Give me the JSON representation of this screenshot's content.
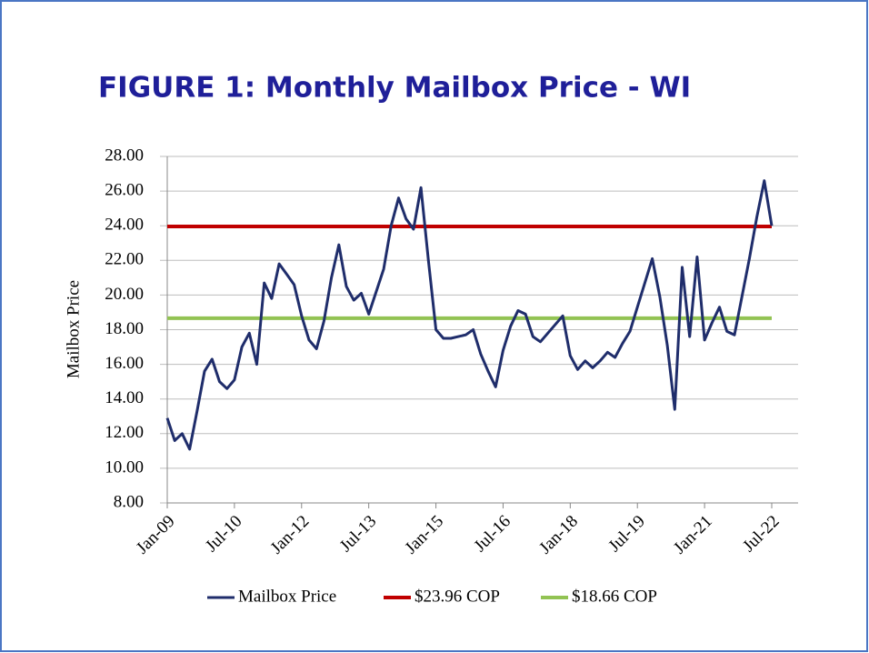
{
  "chart_data": {
    "type": "line",
    "title": "FIGURE 1: Monthly Mailbox Price - WI",
    "y_label": "Mailbox Price",
    "categories": [
      "Jan-09",
      null,
      null,
      null,
      null,
      null,
      null,
      null,
      null,
      "Jul-10",
      null,
      null,
      null,
      null,
      null,
      null,
      null,
      null,
      "Jan-12",
      null,
      null,
      null,
      null,
      null,
      null,
      null,
      null,
      "Jul-13",
      null,
      null,
      null,
      null,
      null,
      null,
      null,
      null,
      "Jan-15",
      null,
      null,
      null,
      null,
      null,
      null,
      null,
      null,
      "Jul-16",
      null,
      null,
      null,
      null,
      null,
      null,
      null,
      null,
      "Jan-18",
      null,
      null,
      null,
      null,
      null,
      null,
      null,
      null,
      "Jul-19",
      null,
      null,
      null,
      null,
      null,
      null,
      null,
      null,
      "Jan-21",
      null,
      null,
      null,
      null,
      null,
      null,
      null,
      null,
      "Jul-22"
    ],
    "series": [
      {
        "name": "Mailbox Price",
        "color": "#1f2d6b",
        "values": [
          12.9,
          11.6,
          12.0,
          11.1,
          13.3,
          15.6,
          16.3,
          15.0,
          14.6,
          15.1,
          17.0,
          17.8,
          16.0,
          20.7,
          19.8,
          21.8,
          21.2,
          20.6,
          18.8,
          17.4,
          16.9,
          18.5,
          21.0,
          22.9,
          20.5,
          19.7,
          20.1,
          18.9,
          20.2,
          21.5,
          24.0,
          25.6,
          24.4,
          23.8,
          26.2,
          22.0,
          18.0,
          17.5,
          17.5,
          17.6,
          17.7,
          18.0,
          16.6,
          15.6,
          14.7,
          16.8,
          18.2,
          19.1,
          18.9,
          17.6,
          17.3,
          17.8,
          18.3,
          18.8,
          16.5,
          15.7,
          16.2,
          15.8,
          16.2,
          16.7,
          16.4,
          17.2,
          17.9,
          19.3,
          20.7,
          22.1,
          19.9,
          17.1,
          13.4,
          21.6,
          17.6,
          22.2,
          17.4,
          18.4,
          19.3,
          17.9,
          17.7,
          19.9,
          22.1,
          24.5,
          26.6,
          24.0
        ]
      }
    ],
    "reference_lines": [
      {
        "name": "$23.96 COP",
        "color": "#c00000",
        "value": 23.96
      },
      {
        "name": "$18.66 COP",
        "color": "#92c353",
        "value": 18.66
      }
    ],
    "ylim": [
      8,
      28
    ],
    "yticks": [
      {
        "value": 8,
        "label": "8.00"
      },
      {
        "value": 10,
        "label": "10.00"
      },
      {
        "value": 12,
        "label": "12.00"
      },
      {
        "value": 14,
        "label": "14.00"
      },
      {
        "value": 16,
        "label": "16.00"
      },
      {
        "value": 18,
        "label": "18.00"
      },
      {
        "value": 20,
        "label": "20.00"
      },
      {
        "value": 22,
        "label": "22.00"
      },
      {
        "value": 24,
        "label": "24.00"
      },
      {
        "value": 26,
        "label": "26.00"
      },
      {
        "value": 28,
        "label": "28.00"
      }
    ],
    "grid": true
  }
}
